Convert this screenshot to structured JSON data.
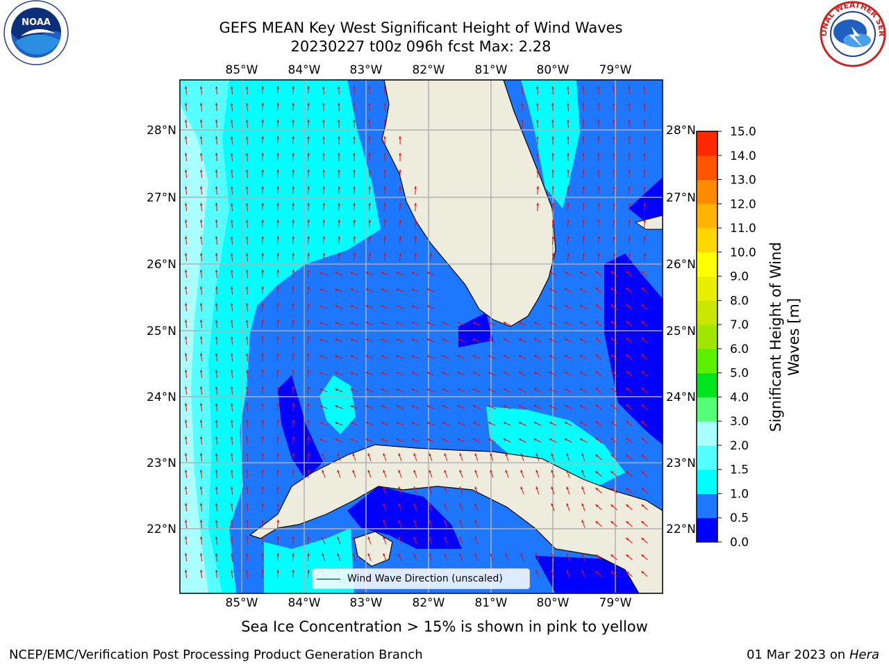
{
  "header": {
    "title_line1": "GEFS MEAN Key West Significant Height of Wind Waves",
    "title_line2": "20230227 t00z 096h fcst   Max: 2.28"
  },
  "logos": {
    "left": {
      "name": "noaa-logo",
      "text": "NOAA",
      "ring_text": "NATIONAL OCEANIC AND ATMOSPHERIC ADMINISTRATION · U.S. DEPARTMENT OF COMMERCE"
    },
    "right": {
      "name": "nws-logo",
      "ring_text": "NATIONAL WEATHER SERVICE"
    }
  },
  "map": {
    "lon_labels": [
      "85°W",
      "84°W",
      "83°W",
      "82°W",
      "81°W",
      "80°W",
      "79°W"
    ],
    "lat_labels": [
      "28°N",
      "27°N",
      "26°N",
      "25°N",
      "24°N",
      "23°N",
      "22°N"
    ],
    "legend_label": "Wind Wave Direction (unscaled)",
    "colors": {
      "land": "#eeecdc",
      "arrow": "#ff0000",
      "grid": "#b0b0b0"
    }
  },
  "colorbar": {
    "label": "Significant Height of Wind Waves [m]",
    "ticks": [
      "0.0",
      "0.5",
      "1.0",
      "1.5",
      "2.0",
      "3.0",
      "4.0",
      "5.0",
      "6.0",
      "7.0",
      "8.0",
      "9.0",
      "10.0",
      "11.0",
      "12.0",
      "13.0",
      "14.0",
      "15.0"
    ],
    "colors": [
      "#0000ff",
      "#1e78ff",
      "#00ffff",
      "#55ffff",
      "#aaffff",
      "#55ff78",
      "#00e61e",
      "#5af000",
      "#a0e600",
      "#c8e600",
      "#e6f000",
      "#ffff00",
      "#ffd700",
      "#ffb400",
      "#ff8c00",
      "#ff5500",
      "#ff2800",
      "#ff0000"
    ]
  },
  "notes": {
    "ice": "Sea Ice Concentration > 15% is shown in pink to yellow"
  },
  "footer": {
    "left": "NCEP/EMC/Verification Post Processing Product Generation Branch",
    "date": "01 Mar 2023 on",
    "host": "Hera"
  }
}
